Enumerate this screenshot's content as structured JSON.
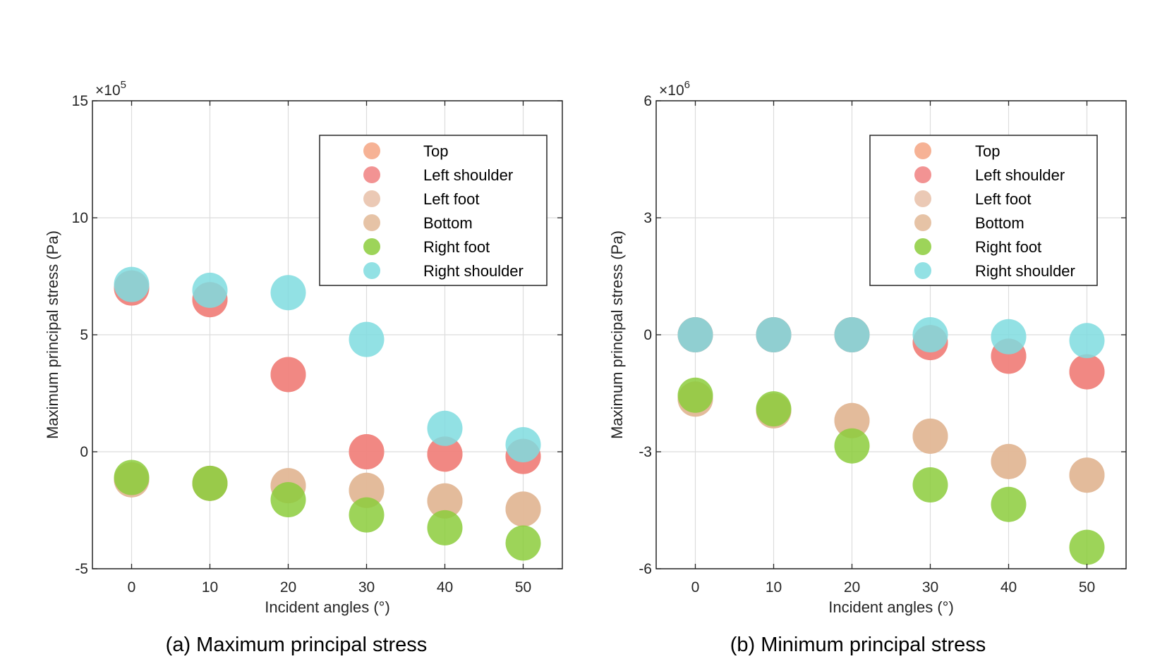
{
  "chart_data": [
    {
      "type": "scatter",
      "title": "",
      "caption": "(a) Maximum principal stress",
      "xlabel": "Incident angles (°)",
      "ylabel": "Maximum principal stress (Pa)",
      "x": [
        0,
        10,
        20,
        30,
        40,
        50
      ],
      "xlim": [
        -5,
        55
      ],
      "xticks": [
        "0",
        "10",
        "20",
        "30",
        "40",
        "50"
      ],
      "ylim": [
        -5,
        15
      ],
      "yticks": [
        "-5",
        "0",
        "5",
        "10",
        "15"
      ],
      "exponent_base": "×10",
      "exponent_power": "5",
      "grid": true,
      "legend_position": "top-right",
      "series": [
        {
          "name": "Top",
          "color": "#F4A582",
          "values": [
            7.0,
            6.5,
            3.3,
            0.0,
            -0.1,
            -0.2
          ]
        },
        {
          "name": "Left shoulder",
          "color": "#F08080",
          "values": [
            7.0,
            6.5,
            3.3,
            0.0,
            -0.1,
            -0.2
          ]
        },
        {
          "name": "Left foot",
          "color": "#E8BFA8",
          "values": [
            -1.2,
            -1.35,
            -1.45,
            -1.65,
            -2.1,
            -2.45
          ]
        },
        {
          "name": "Bottom",
          "color": "#E2B896",
          "values": [
            -1.2,
            -1.35,
            -1.45,
            -1.65,
            -2.1,
            -2.45
          ]
        },
        {
          "name": "Right foot",
          "color": "#8CCC3C",
          "values": [
            -1.1,
            -1.35,
            -2.05,
            -2.7,
            -3.25,
            -3.9
          ]
        },
        {
          "name": "Right shoulder",
          "color": "#7FDCDF",
          "values": [
            7.15,
            6.9,
            6.8,
            4.8,
            1.0,
            0.3
          ]
        }
      ]
    },
    {
      "type": "scatter",
      "title": "",
      "caption": "(b) Minimum principal stress",
      "xlabel": "Incident angles (°)",
      "ylabel": "Maximum principal stress (Pa)",
      "x": [
        0,
        10,
        20,
        30,
        40,
        50
      ],
      "xlim": [
        -5,
        55
      ],
      "xticks": [
        "0",
        "10",
        "20",
        "30",
        "40",
        "50"
      ],
      "ylim": [
        -6,
        6
      ],
      "yticks": [
        "-6",
        "-3",
        "0",
        "3",
        "6"
      ],
      "exponent_base": "×10",
      "exponent_power": "6",
      "grid": true,
      "legend_position": "top-right",
      "series": [
        {
          "name": "Top",
          "color": "#F4A582",
          "values": [
            0.0,
            0.0,
            0.0,
            -0.2,
            -0.55,
            -0.95
          ]
        },
        {
          "name": "Left shoulder",
          "color": "#F08080",
          "values": [
            0.0,
            0.0,
            0.0,
            -0.2,
            -0.55,
            -0.95
          ]
        },
        {
          "name": "Left foot",
          "color": "#E8BFA8",
          "values": [
            -1.65,
            -1.95,
            -2.2,
            -2.6,
            -3.25,
            -3.6
          ]
        },
        {
          "name": "Bottom",
          "color": "#E2B896",
          "values": [
            -1.65,
            -1.95,
            -2.2,
            -2.6,
            -3.25,
            -3.6
          ]
        },
        {
          "name": "Right foot",
          "color": "#8CCC3C",
          "values": [
            -1.55,
            -1.9,
            -2.85,
            -3.85,
            -4.35,
            -5.45
          ]
        },
        {
          "name": "Right shoulder",
          "color": "#7FDCDF",
          "values": [
            0.0,
            0.0,
            0.0,
            0.0,
            -0.05,
            -0.15
          ]
        }
      ]
    }
  ]
}
